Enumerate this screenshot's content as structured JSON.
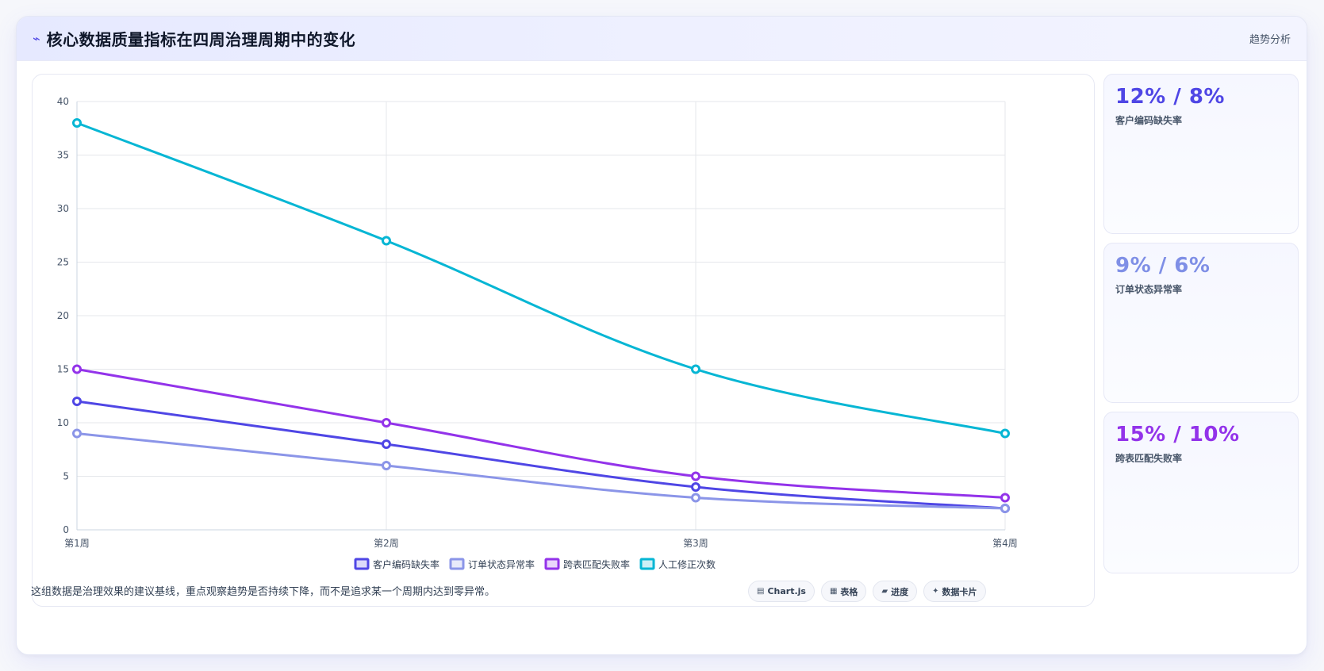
{
  "header": {
    "icon": "trend-line-icon",
    "title": "核心数据质量指标在四周治理周期中的变化",
    "right_label": "趋势分析"
  },
  "stats": [
    {
      "value": "12% / 8%",
      "label": "客户编码缺失率",
      "color": "#4f46e5"
    },
    {
      "value": "9% / 6%",
      "label": "订单状态异常率",
      "color": "#7f8fe6"
    },
    {
      "value": "15% / 10%",
      "label": "跨表匹配失败率",
      "color": "#9333ea"
    }
  ],
  "footer": {
    "note": "这组数据是治理效果的建议基线，重点观察趋势是否持续下降，而不是追求某一个周期内达到零异常。",
    "chips": [
      {
        "icon": "chart-icon",
        "label": "Chart.js"
      },
      {
        "icon": "table-icon",
        "label": "表格"
      },
      {
        "icon": "progress-icon",
        "label": "进度"
      },
      {
        "icon": "sparkle-icon",
        "label": "数据卡片"
      }
    ]
  },
  "chart_data": {
    "type": "line",
    "categories": [
      "第1周",
      "第2周",
      "第3周",
      "第4周"
    ],
    "series": [
      {
        "name": "客户编码缺失率",
        "values": [
          12,
          8,
          4,
          2
        ],
        "color": "#4f46e5"
      },
      {
        "name": "订单状态异常率",
        "values": [
          9,
          6,
          3,
          2
        ],
        "color": "#8b95e8"
      },
      {
        "name": "跨表匹配失败率",
        "values": [
          15,
          10,
          5,
          3
        ],
        "color": "#9333ea"
      },
      {
        "name": "人工修正次数",
        "values": [
          38,
          27,
          15,
          9
        ],
        "color": "#06b6d4"
      }
    ],
    "ylim": [
      0,
      40
    ],
    "yticks": [
      0,
      5,
      10,
      15,
      20,
      25,
      30,
      35,
      40
    ],
    "grid": true,
    "legend": "bottom"
  }
}
